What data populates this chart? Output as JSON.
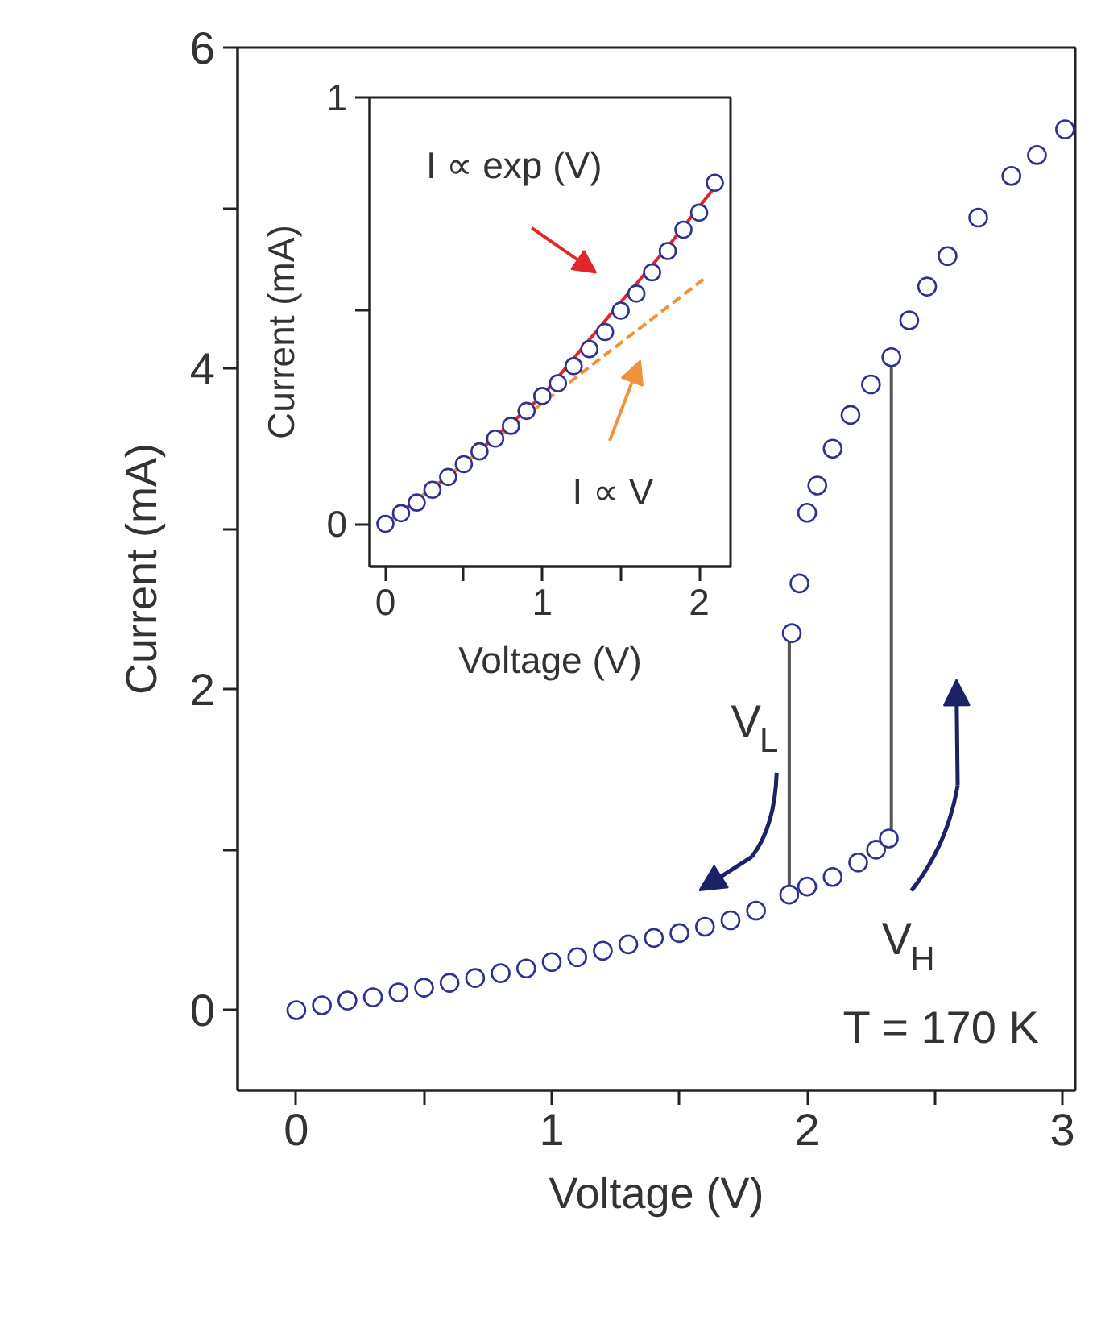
{
  "chart_data": [
    {
      "type": "scatter",
      "xlabel": "Voltage (V)",
      "ylabel": "Current (mA)",
      "xlim": [
        -0.23,
        3.05
      ],
      "ylim": [
        -0.5,
        6
      ],
      "xticks": [
        0,
        {
          "value": 0.5,
          "label": null
        },
        1,
        {
          "value": 1.5,
          "label": null
        },
        2,
        {
          "value": 2.5,
          "label": null
        },
        3
      ],
      "yticks": [
        0,
        {
          "value": 1,
          "label": null
        },
        2,
        {
          "value": 3,
          "label": null
        },
        4,
        {
          "value": 5,
          "label": null
        },
        6
      ],
      "series": [
        {
          "marker": "circle",
          "color": "#2e3192",
          "x": [
            0,
            0.1,
            0.2,
            0.3,
            0.4,
            0.5,
            0.6,
            0.7,
            0.8,
            0.9,
            1.0,
            1.1,
            1.2,
            1.3,
            1.4,
            1.5,
            1.6,
            1.7,
            1.8,
            1.93,
            2.0,
            2.1,
            2.2,
            2.27,
            2.32,
            3.01,
            2.9,
            2.8,
            2.67,
            2.55,
            2.47,
            2.4,
            2.33,
            2.25,
            2.17,
            2.1,
            2.04,
            2.0,
            1.97,
            1.94
          ],
          "values": [
            0,
            0.03,
            0.06,
            0.08,
            0.11,
            0.14,
            0.17,
            0.2,
            0.23,
            0.26,
            0.3,
            0.33,
            0.37,
            0.41,
            0.45,
            0.48,
            0.52,
            0.56,
            0.62,
            0.72,
            0.77,
            0.83,
            0.92,
            1.0,
            1.07,
            5.49,
            5.33,
            5.2,
            4.94,
            4.7,
            4.51,
            4.3,
            4.07,
            3.9,
            3.71,
            3.5,
            3.27,
            3.1,
            2.66,
            2.35
          ]
        },
        {
          "type": "line",
          "color": "#555555",
          "x": [
            1.93,
            1.93
          ],
          "values": [
            0.72,
            2.35
          ]
        },
        {
          "type": "line",
          "color": "#555555",
          "x": [
            2.33,
            2.33
          ],
          "values": [
            1.07,
            4.07
          ]
        }
      ],
      "annotations": [
        "V$_{L}$",
        "V$_{H}$",
        "T = 170 K"
      ]
    },
    {
      "type": "scatter",
      "xlabel": "Voltage (V)",
      "ylabel": "Current (mA)",
      "xlim": [
        -0.1,
        2.2
      ],
      "ylim": [
        -0.1,
        1
      ],
      "xticks": [
        0,
        {
          "value": 0.5,
          "label": null
        },
        1,
        {
          "value": 1.5,
          "label": null
        },
        2
      ],
      "yticks": [
        0,
        {
          "value": 0.5,
          "label": null
        },
        1
      ],
      "series": [
        {
          "marker": "circle",
          "color": "#2e3192",
          "x": [
            0,
            0.1,
            0.2,
            0.3,
            0.4,
            0.5,
            0.6,
            0.7,
            0.8,
            0.9,
            1.0,
            1.1,
            1.2,
            1.3,
            1.4,
            1.5,
            1.6,
            1.7,
            1.8,
            1.9,
            2.0,
            2.1
          ],
          "values": [
            0,
            0.025,
            0.05,
            0.08,
            0.11,
            0.14,
            0.17,
            0.2,
            0.23,
            0.265,
            0.3,
            0.33,
            0.37,
            0.41,
            0.45,
            0.5,
            0.54,
            0.59,
            0.64,
            0.69,
            0.73,
            0.8
          ]
        },
        {
          "type": "line",
          "color": "#e3262a",
          "x": [
            0,
            0.5,
            1,
            1.5,
            1.8,
            2.1
          ],
          "values": [
            0,
            0.14,
            0.3,
            0.52,
            0.65,
            0.79
          ]
        },
        {
          "type": "line",
          "color": "#f0923a",
          "line_style": "dashed",
          "x": [
            0,
            2.05
          ],
          "values": [
            0,
            0.58
          ]
        }
      ],
      "annotations": [
        "I ∝ exp (V)",
        "I ∝ V"
      ]
    }
  ]
}
